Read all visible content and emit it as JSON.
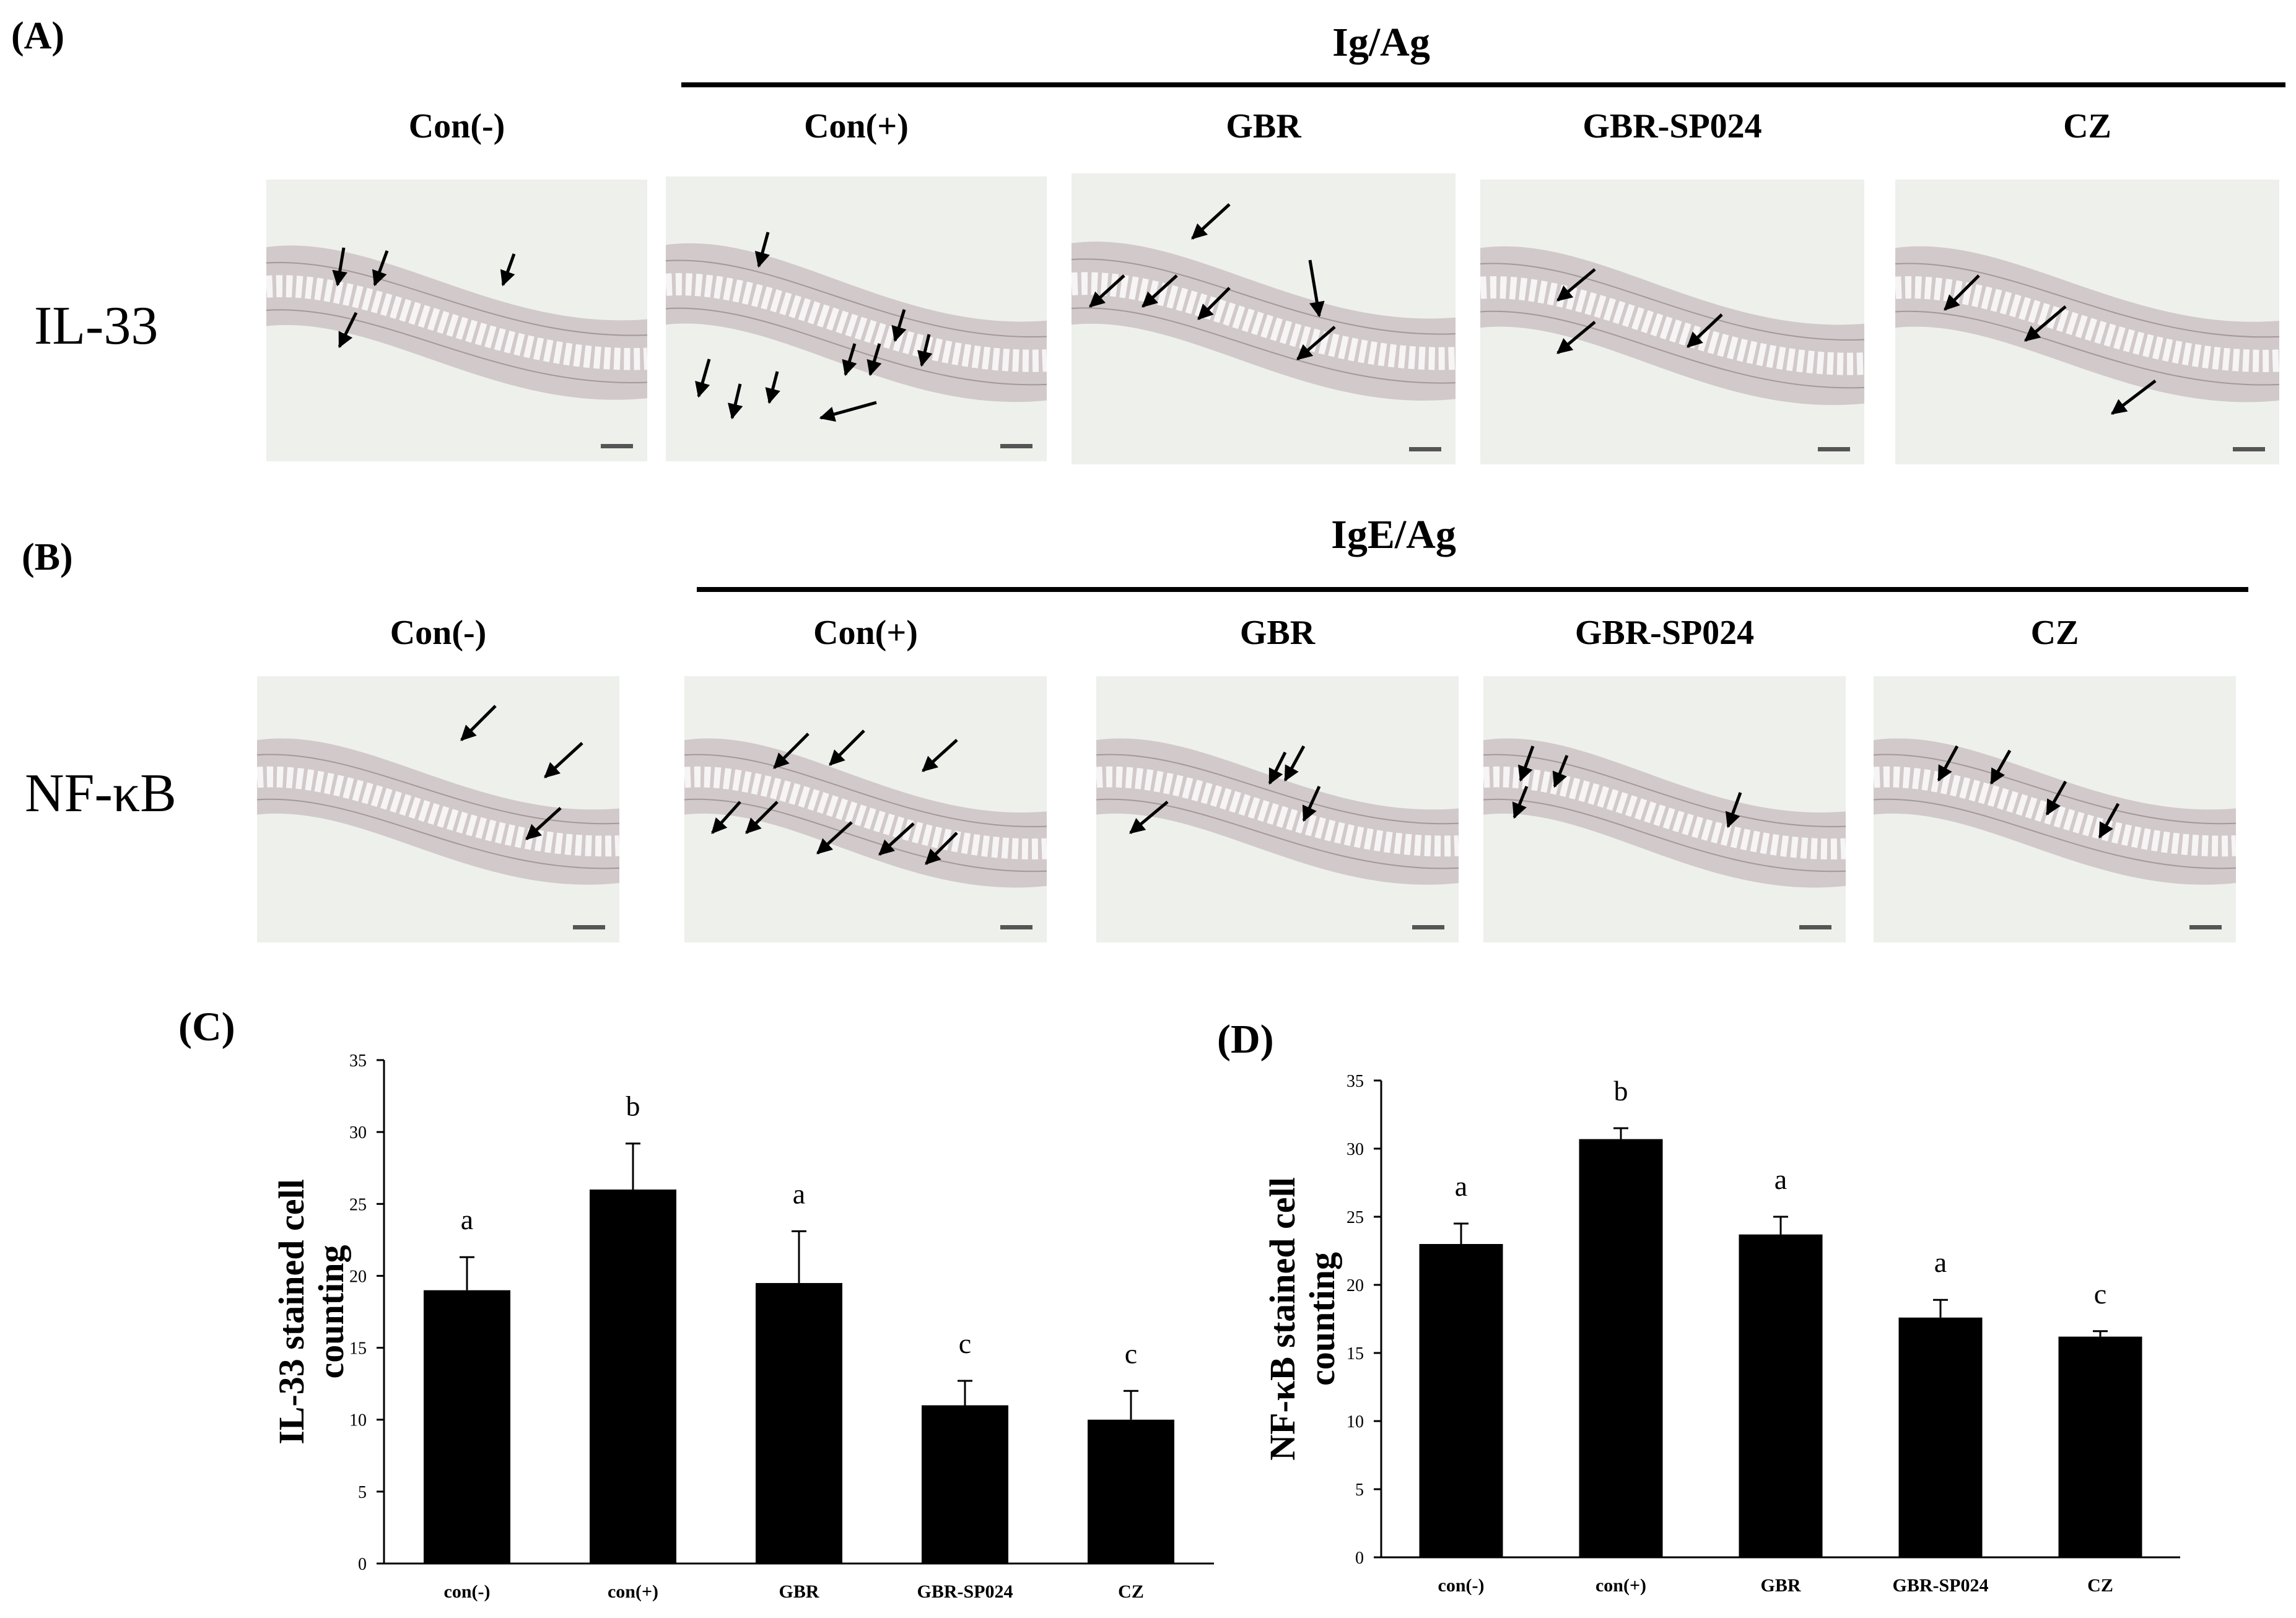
{
  "panel_a": {
    "letter": "(A)",
    "group_label": "Ig/Ag",
    "row_label": "IL-33",
    "columns": [
      "Con(-)",
      "Con(+)",
      "GBR",
      "GBR-SP024",
      "CZ"
    ]
  },
  "panel_b": {
    "letter": "(B)",
    "group_label": "IgE/Ag",
    "row_label": "NF-κB",
    "columns": [
      "Con(-)",
      "Con(+)",
      "GBR",
      "GBR-SP024",
      "CZ"
    ]
  },
  "colors": {
    "bar": "#000000",
    "tissue": "#b9a9ae",
    "background": "#eef0ec",
    "arrow": "#000000"
  },
  "chart_data": [
    {
      "letter": "(C)",
      "type": "bar",
      "categories": [
        "con(-)",
        "con(+)",
        "GBR",
        "GBR-SP024",
        "CZ"
      ],
      "values": [
        19,
        26,
        19.5,
        11,
        10
      ],
      "errors": [
        2.3,
        3.2,
        3.6,
        1.7,
        2.0
      ],
      "significance": [
        "a",
        "b",
        "a",
        "c",
        "c"
      ],
      "title": "",
      "xlabel": "",
      "ylabel": "IL-33 stained cell counting",
      "ylim": [
        0,
        35
      ],
      "yticks": [
        0,
        5,
        10,
        15,
        20,
        25,
        30,
        35
      ],
      "grid": false
    },
    {
      "letter": "(D)",
      "type": "bar",
      "categories": [
        "con(-)",
        "con(+)",
        "GBR",
        "GBR-SP024",
        "CZ"
      ],
      "values": [
        23,
        30.7,
        23.7,
        17.6,
        16.2
      ],
      "errors": [
        1.5,
        0.8,
        1.3,
        1.3,
        0.4
      ],
      "significance": [
        "a",
        "b",
        "a",
        "a",
        "c"
      ],
      "title": "",
      "xlabel": "",
      "ylabel": "NF-κB stained cell counting",
      "ylim": [
        0,
        35
      ],
      "yticks": [
        0,
        5,
        10,
        15,
        20,
        25,
        30,
        35
      ],
      "grid": false
    }
  ]
}
